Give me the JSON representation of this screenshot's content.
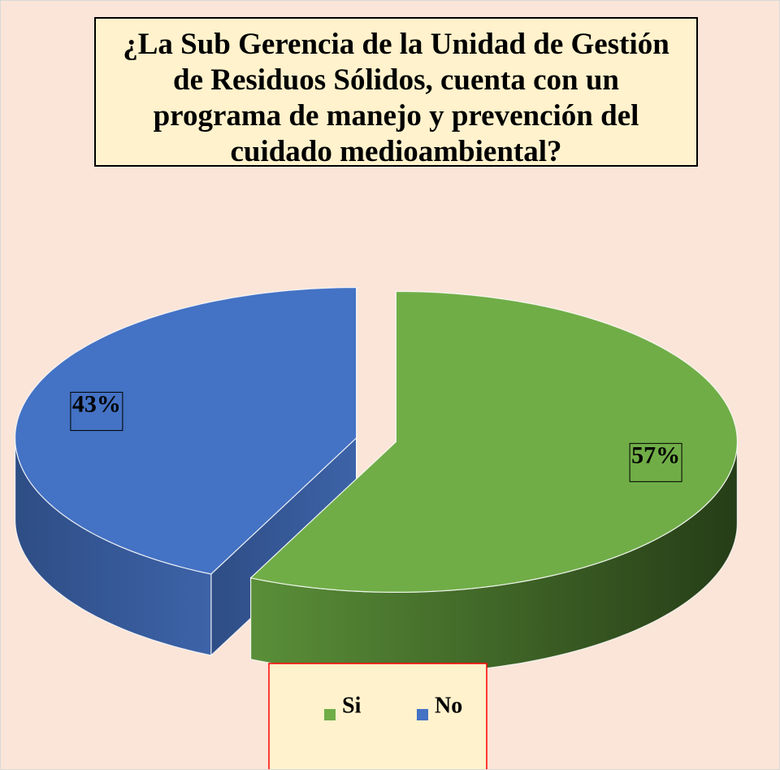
{
  "chart_data": {
    "type": "pie",
    "title": "¿La Sub Gerencia de la Unidad de Gestión de Residuos Sólidos, cuenta con un programa de manejo y prevención del cuidado medioambiental?",
    "categories": [
      "Si",
      "No"
    ],
    "values": [
      57,
      43
    ],
    "value_labels": [
      "57%",
      "43%"
    ],
    "colors": [
      "#70ad47",
      "#4472c4"
    ],
    "legend": "bottom"
  }
}
